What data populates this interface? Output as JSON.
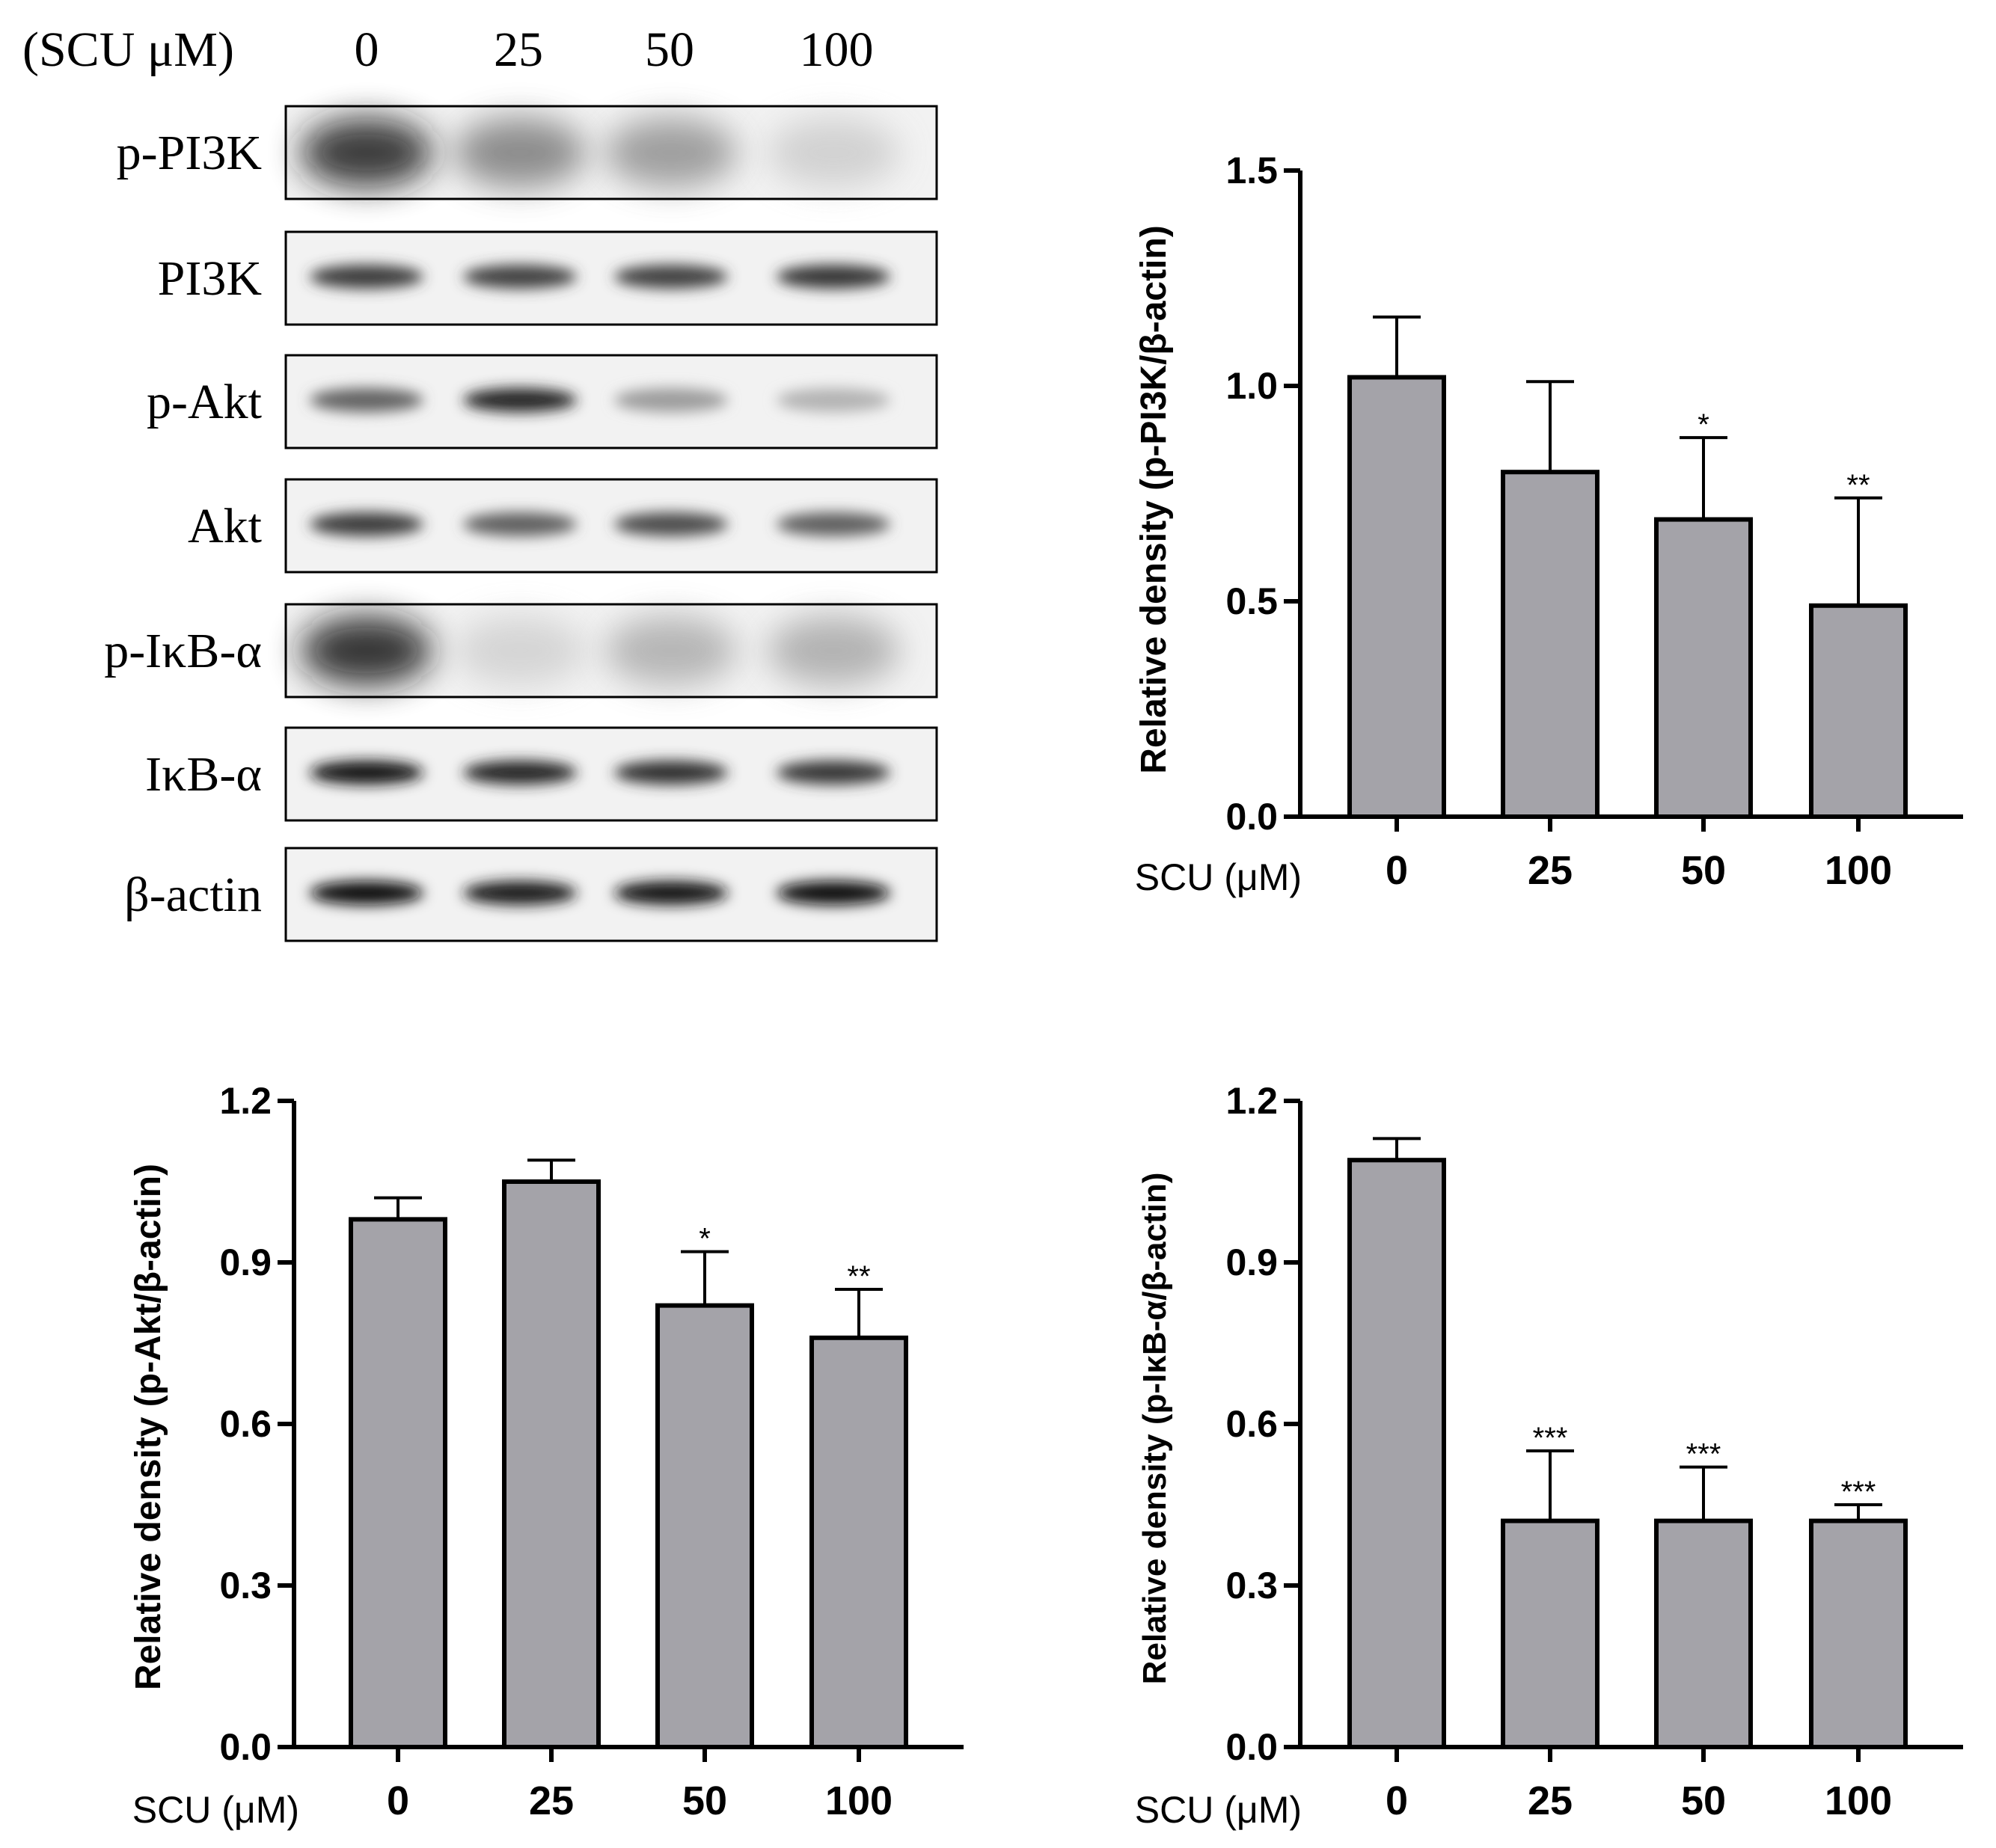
{
  "western_blot": {
    "condition_header": "(SCU μM)",
    "lane_labels": [
      "0",
      "25",
      "50",
      "100"
    ],
    "proteins": [
      {
        "label": "p-PI3K",
        "intensities": [
          0.92,
          0.5,
          0.4,
          0.14
        ],
        "diffuse": true
      },
      {
        "label": "PI3K",
        "intensities": [
          0.78,
          0.75,
          0.75,
          0.8
        ],
        "diffuse": false
      },
      {
        "label": "p-Akt",
        "intensities": [
          0.6,
          0.88,
          0.35,
          0.25
        ],
        "diffuse": false
      },
      {
        "label": "Akt",
        "intensities": [
          0.78,
          0.62,
          0.7,
          0.62
        ],
        "diffuse": false
      },
      {
        "label": "p-IκB-α",
        "intensities": [
          0.95,
          0.12,
          0.28,
          0.3
        ],
        "diffuse": true
      },
      {
        "label": "IκB-α",
        "intensities": [
          0.96,
          0.88,
          0.82,
          0.8
        ],
        "diffuse": false
      },
      {
        "label": "β-actin",
        "intensities": [
          0.97,
          0.92,
          0.94,
          0.98
        ],
        "diffuse": false
      }
    ]
  },
  "colors": {
    "bar_fill": "#a4a3a9",
    "stroke": "#000000",
    "background": "#ffffff"
  },
  "chart_data": [
    {
      "type": "bar",
      "categories": [
        "0",
        "25",
        "50",
        "100"
      ],
      "values": [
        1.02,
        0.8,
        0.69,
        0.49
      ],
      "errors": [
        0.14,
        0.21,
        0.19,
        0.25
      ],
      "significance": [
        "",
        "",
        "*",
        "**"
      ],
      "ylabel": "Relative density (p-PI3K/β-actin)",
      "xlabel": "SCU (μM)",
      "yticks": [
        "0.0",
        "0.5",
        "1.0",
        "1.5"
      ],
      "ylim": [
        0,
        1.5
      ]
    },
    {
      "type": "bar",
      "categories": [
        "0",
        "25",
        "50",
        "100"
      ],
      "values": [
        0.98,
        1.05,
        0.82,
        0.76
      ],
      "errors": [
        0.04,
        0.04,
        0.1,
        0.09
      ],
      "significance": [
        "",
        "",
        "*",
        "**"
      ],
      "ylabel": "Relative density (p-Akt/β-actin)",
      "xlabel": "SCU (μM)",
      "yticks": [
        "0.0",
        "0.3",
        "0.6",
        "0.9",
        "1.2"
      ],
      "ylim": [
        0,
        1.2
      ]
    },
    {
      "type": "bar",
      "categories": [
        "0",
        "25",
        "50",
        "100"
      ],
      "values": [
        1.09,
        0.42,
        0.42,
        0.42
      ],
      "errors": [
        0.04,
        0.13,
        0.1,
        0.03
      ],
      "significance": [
        "",
        "***",
        "***",
        "***"
      ],
      "ylabel": "Relative density (p-IκB-α/β-actin)",
      "xlabel": "SCU (μM)",
      "yticks": [
        "0.0",
        "0.3",
        "0.6",
        "0.9",
        "1.2"
      ],
      "ylim": [
        0,
        1.2
      ]
    }
  ]
}
